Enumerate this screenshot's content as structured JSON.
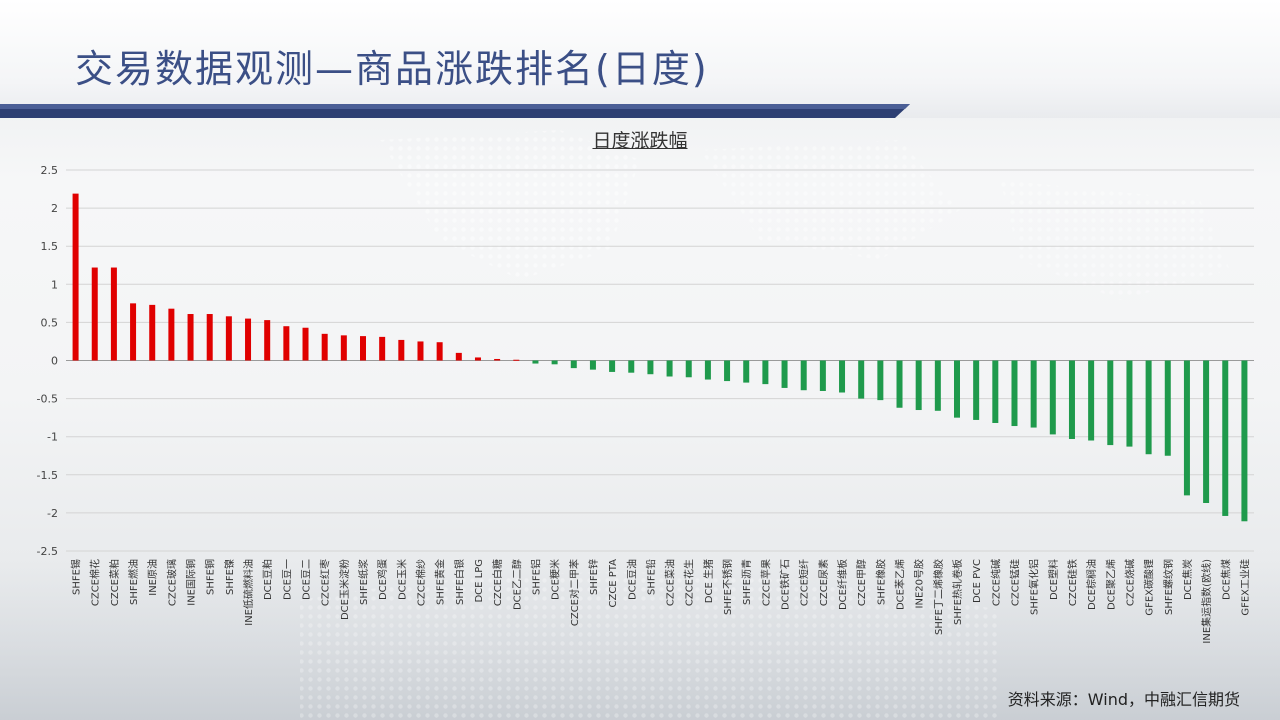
{
  "header": {
    "title": "交易数据观测—商品涨跌排名(日度)"
  },
  "footer": {
    "source": "资料来源：Wind，中融汇信期货"
  },
  "colors": {
    "up": "#e00000",
    "down": "#1f9a4c",
    "title": "#3b4f86"
  },
  "chart_data": {
    "type": "bar",
    "title": "日度涨跌幅",
    "xlabel": "",
    "ylabel": "",
    "ylim": [
      -2.5,
      2.5
    ],
    "yticks": [
      "2.5",
      "2",
      "1.5",
      "1",
      "0.5",
      "0",
      "-0.5",
      "-1",
      "-1.5",
      "-2",
      "-2.5"
    ],
    "grid": true,
    "legend": "none",
    "categories": [
      "SHFE锡",
      "CZCE棉花",
      "CZCE菜粕",
      "SHFE燃油",
      "INE原油",
      "CZCE玻璃",
      "INE国际铜",
      "SHFE铜",
      "SHFE镍",
      "INE低硫燃料油",
      "DCE豆粕",
      "DCE豆一",
      "DCE豆二",
      "CZCE红枣",
      "DCE玉米淀粉",
      "SHFE纸浆",
      "DCE鸡蛋",
      "DCE玉米",
      "CZCE棉纱",
      "SHFE黄金",
      "SHFE白银",
      "DCE LPG",
      "CZCE白糖",
      "DCE乙二醇",
      "SHFE铝",
      "DCE粳米",
      "CZCE对二甲苯",
      "SHFE锌",
      "CZCE PTA",
      "DCE豆油",
      "SHFE铅",
      "CZCE菜油",
      "CZCE花生",
      "DCE 生猪",
      "SHFE不锈钢",
      "SHFE沥青",
      "CZCE苹果",
      "DCE铁矿石",
      "CZCE短纤",
      "CZCE尿素",
      "DCE纤维板",
      "CZCE甲醇",
      "SHFE橡胶",
      "DCE苯乙烯",
      "INE20号胶",
      "SHFE丁二烯橡胶",
      "SHFE热轧卷板",
      "DCE PVC",
      "CZCE纯碱",
      "CZCE锰硅",
      "SHFE氧化铝",
      "DCE塑料",
      "CZCE硅铁",
      "DCE棕榈油",
      "DCE聚乙烯",
      "CZCE烧碱",
      "GFEX碳酸锂",
      "SHFE螺纹钢",
      "DCE焦炭",
      "INE集运指数(欧线)",
      "DCE焦煤",
      "GFEX工业硅"
    ],
    "values": [
      2.19,
      1.22,
      1.22,
      0.75,
      0.73,
      0.68,
      0.61,
      0.61,
      0.58,
      0.55,
      0.53,
      0.45,
      0.43,
      0.35,
      0.33,
      0.32,
      0.31,
      0.27,
      0.25,
      0.24,
      0.1,
      0.04,
      0.02,
      0.01,
      -0.04,
      -0.05,
      -0.1,
      -0.12,
      -0.15,
      -0.16,
      -0.18,
      -0.21,
      -0.22,
      -0.25,
      -0.27,
      -0.29,
      -0.31,
      -0.36,
      -0.39,
      -0.4,
      -0.42,
      -0.5,
      -0.52,
      -0.62,
      -0.65,
      -0.66,
      -0.75,
      -0.78,
      -0.82,
      -0.86,
      -0.88,
      -0.97,
      -1.03,
      -1.05,
      -1.11,
      -1.13,
      -1.23,
      -1.25,
      -1.77,
      -1.87,
      -2.04,
      -2.11
    ]
  }
}
